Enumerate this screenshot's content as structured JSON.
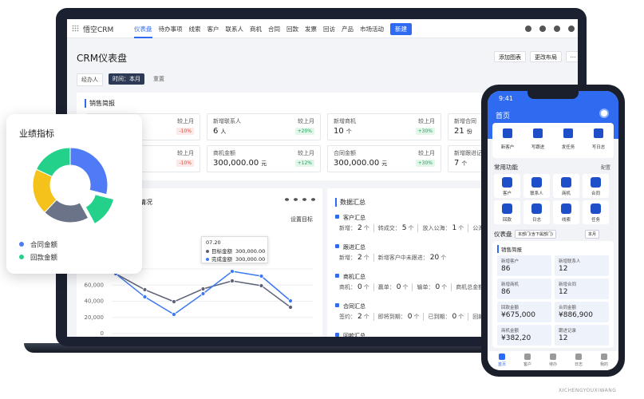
{
  "laptop": {
    "brand": "悟空CRM",
    "nav": [
      "仪表盘",
      "待办事项",
      "线索",
      "客户",
      "联系人",
      "商机",
      "合同",
      "回款",
      "发票",
      "回访",
      "产品",
      "市场活动"
    ],
    "new_button": "新建",
    "page_title": "CRM仪表盘",
    "actions": [
      "添加图表",
      "更改布局",
      "···"
    ],
    "filters": {
      "owner": "经办人",
      "time": "时间：本月",
      "reset": "重置"
    },
    "briefing": {
      "title": "销售简报",
      "cards": [
        {
          "compare": "较上月",
          "change": "-10%"
        },
        {
          "label": "新增联系人",
          "value": "6",
          "unit": "人",
          "compare": "较上月",
          "change": "+20%"
        },
        {
          "label": "新增商机",
          "value": "10",
          "unit": "个",
          "compare": "较上月",
          "change": "+30%"
        },
        {
          "label": "新增合同",
          "value": "21",
          "unit": "份"
        },
        {
          "compare": "较上月",
          "change": "-10%"
        },
        {
          "label": "商机金额",
          "value": "300,000.00",
          "unit": "元",
          "compare": "较上月",
          "change": "+12%"
        },
        {
          "label": "合同金额",
          "value": "300,000.00",
          "unit": "元",
          "compare": "较上月",
          "change": "+30%"
        },
        {
          "label": "新增跟进记录",
          "value": "7",
          "unit": "个"
        }
      ]
    },
    "summary": {
      "title": "数据汇总",
      "sections": [
        {
          "title": "客户汇总",
          "items": [
            {
              "label": "新增：",
              "value": "2",
              "unit": "个"
            },
            {
              "label": "转成交：",
              "value": "5",
              "unit": "个"
            },
            {
              "label": "放入公海：",
              "value": "1",
              "unit": "个"
            },
            {
              "label": "公海池领"
            }
          ]
        },
        {
          "title": "跟进汇总",
          "items": [
            {
              "label": "新增：",
              "value": "2",
              "unit": "个"
            },
            {
              "label": "新增客户中未跟进：",
              "value": "20",
              "unit": "个"
            }
          ]
        },
        {
          "title": "商机汇总",
          "items": [
            {
              "label": "商机：",
              "value": "0",
              "unit": "个"
            },
            {
              "label": "赢单：",
              "value": "0",
              "unit": "个"
            },
            {
              "label": "输单：",
              "value": "0",
              "unit": "个"
            },
            {
              "label": "商机总金额"
            }
          ]
        },
        {
          "title": "合同汇总",
          "items": [
            {
              "label": "签约：",
              "value": "2",
              "unit": "个"
            },
            {
              "label": "即将到期：",
              "value": "0",
              "unit": "个"
            },
            {
              "label": "已到期：",
              "value": "0",
              "unit": "个"
            },
            {
              "label": "回款"
            }
          ]
        },
        {
          "title": "回款汇总",
          "items": []
        }
      ]
    }
  },
  "chart_data": [
    {
      "type": "line",
      "title": "情况",
      "link": "设置目标",
      "categories": [
        null,
        null,
        null,
        null,
        null,
        null,
        null
      ],
      "series": [
        {
          "name": "目标金额",
          "color": "#5d6275",
          "values": [
            74000,
            54300,
            39500,
            55300,
            65200,
            59300,
            32600
          ]
        },
        {
          "name": "完成金额",
          "color": "#3c78f0",
          "values": [
            74000,
            45400,
            23700,
            49400,
            77000,
            71100,
            40500
          ]
        }
      ],
      "ylim": [
        0,
        80000
      ],
      "yticks": [
        {
          "value": 0,
          "label": "0"
        },
        {
          "value": 20000,
          "label": "20,000"
        },
        {
          "value": 40000,
          "label": "40,000"
        },
        {
          "value": 60000,
          "label": "60,000"
        },
        {
          "value": 80000,
          "label": "80,000"
        }
      ],
      "grid": true,
      "tooltip": {
        "date": "07.20",
        "values": [
          "300,000.00",
          "300,000.00"
        ]
      }
    },
    {
      "type": "pie",
      "title": "业绩指标",
      "values": [
        29,
        13,
        20,
        20,
        18
      ],
      "colors": [
        "#4f7cf6",
        "#23d18b",
        "#6b7388",
        "#f5c21b",
        "#23d18b"
      ],
      "exploded": 1,
      "legend": [
        {
          "name": "合同金额",
          "color": "#4f7cf6"
        },
        {
          "name": "回款金额",
          "color": "#23d18b"
        }
      ]
    }
  ],
  "phone": {
    "time": "9:41",
    "title": "首页",
    "quick": [
      "新客户",
      "写跟进",
      "发任务",
      "写日志"
    ],
    "common_title": "常用功能",
    "config": "配置",
    "apps": [
      "客户",
      "联系人",
      "商机",
      "合同",
      "回款",
      "日志",
      "线索",
      "任务"
    ],
    "dashboard": "仪表盘",
    "scope": "本部门(含下属部门)",
    "period": "本月",
    "briefing": "销售简报",
    "cards": [
      {
        "label": "新增客户",
        "value": "86"
      },
      {
        "label": "新增联系人",
        "value": "12"
      },
      {
        "label": "新增商机",
        "value": "86"
      },
      {
        "label": "新增合同",
        "value": "12"
      },
      {
        "label": "回款金额",
        "value": "¥675,000"
      },
      {
        "label": "合同金额",
        "value": "¥886,900"
      },
      {
        "label": "商机金额",
        "value": "¥382,20"
      },
      {
        "label": "跟进记录",
        "value": "12"
      }
    ],
    "tabs": [
      "首页",
      "客户",
      "待办",
      "日志",
      "我的"
    ]
  },
  "watermark": "XICHENGYOUXIWANG"
}
